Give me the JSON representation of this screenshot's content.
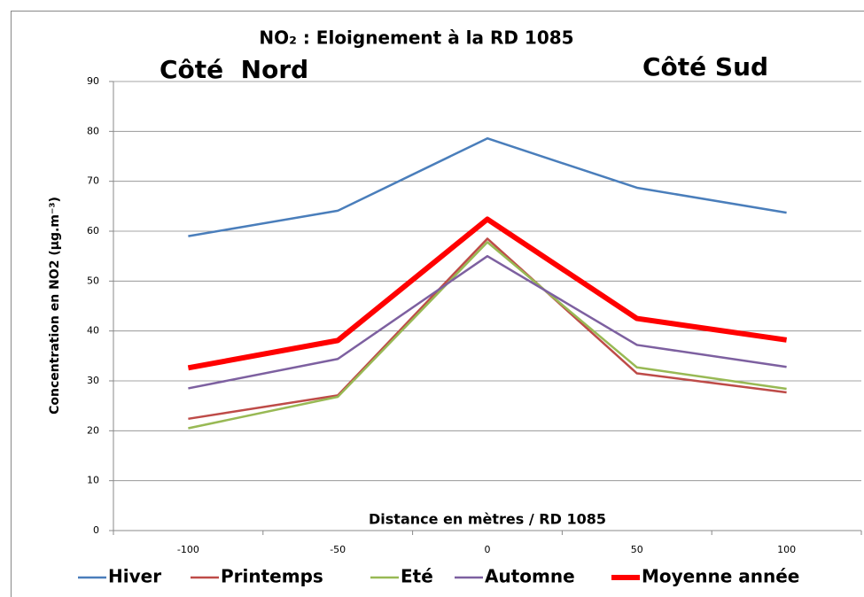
{
  "chart_data": {
    "type": "line",
    "title": "NO₂ : Eloignement à la RD 1085",
    "annotations": [
      "Côté  Nord",
      "Côté Sud"
    ],
    "y_label": "Concentration en NO2 (µg.m⁻³)",
    "x_label": "Distance en mètres / RD 1085",
    "categories": [
      "-100",
      "-50",
      "0",
      "50",
      "100"
    ],
    "series": [
      {
        "name": "Hiver",
        "color": "#4a7ebb",
        "line_width": 2.5,
        "values": [
          59,
          64.1,
          78.6,
          68.7,
          63.7
        ]
      },
      {
        "name": "Printemps",
        "color": "#be4b48",
        "line_width": 2.5,
        "values": [
          22.4,
          27.1,
          58.5,
          31.5,
          27.7
        ]
      },
      {
        "name": "Eté",
        "color": "#98b954",
        "line_width": 2.5,
        "values": [
          20.5,
          26.8,
          57.8,
          32.7,
          28.4
        ]
      },
      {
        "name": "Automne",
        "color": "#7d60a0",
        "line_width": 2.5,
        "values": [
          28.5,
          34.4,
          55,
          37.2,
          32.8
        ]
      },
      {
        "name": "Moyenne année",
        "color": "#ff0000",
        "line_width": 6,
        "values": [
          32.6,
          38.1,
          62.4,
          42.5,
          38.2
        ]
      }
    ],
    "ylim": [
      0,
      90
    ],
    "yticks": [
      0,
      10,
      20,
      30,
      40,
      50,
      60,
      70,
      80,
      90
    ],
    "grid": true,
    "legend": "bottom"
  }
}
